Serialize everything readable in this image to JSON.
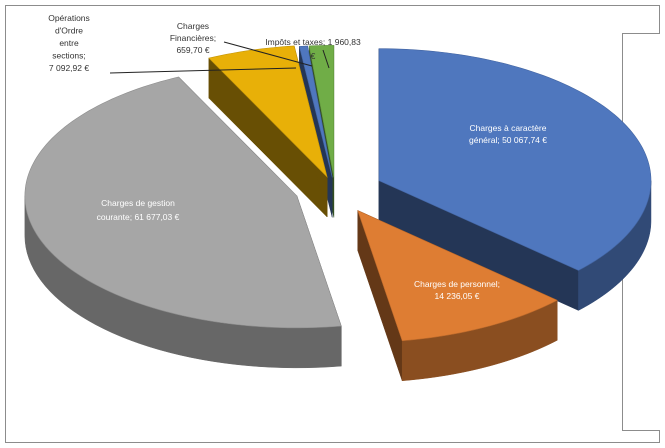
{
  "chart_data": {
    "type": "pie",
    "style": "3d-exploded",
    "currency": "€",
    "slices": [
      {
        "name": "Charges à caractère général",
        "value": 50067.74,
        "color": "#4f77be",
        "label_lines": [
          "Charges à caractère",
          "général;  50 067,74 €"
        ]
      },
      {
        "name": "Charges de personnel",
        "value": 14236.05,
        "color": "#de7d33",
        "label_lines": [
          "Charges de personnel;",
          "14 236,05 €"
        ]
      },
      {
        "name": "Charges de gestion courante",
        "value": 61677.03,
        "color": "#a6a6a6",
        "label_lines": [
          "Charges de gestion",
          "courante;  61 677,03 €"
        ]
      },
      {
        "name": "Opérations d'Ordre entre sections",
        "value": 7092.92,
        "color": "#e8b008",
        "label_lines": [
          "Opérations",
          "d'Ordre",
          "entre",
          "sections;",
          "7 092,92 €"
        ]
      },
      {
        "name": "Charges Financières",
        "value": 659.7,
        "color": "#4f77be",
        "label_lines": [
          "Charges",
          "Financières;",
          "659,70 €"
        ]
      },
      {
        "name": "Impôts et taxes",
        "value": 1960.83,
        "color": "#70ad47",
        "label_lines": [
          "Impôts et taxes;  1 960,83",
          "€"
        ]
      }
    ]
  }
}
